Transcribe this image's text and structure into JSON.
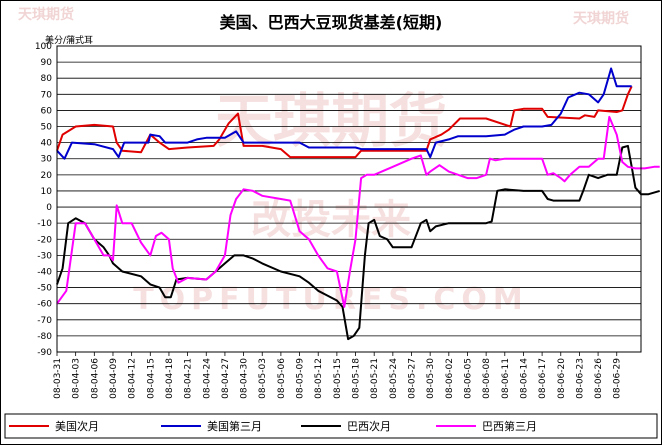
{
  "watermark": {
    "brand": "天琪期货",
    "big_text": "天琪期货",
    "sub_text": "改投未来",
    "url": "TOPFUTURES.COM",
    "color": "#e8b8b8"
  },
  "chart_data": {
    "type": "line",
    "title": "美国、巴西大豆现货基差(短期)",
    "ylabel": "美分/蒲式耳",
    "xlabel": "",
    "ylim": [
      -90,
      100
    ],
    "ytick_step": 10,
    "grid": true,
    "legend_position": "bottom",
    "x": [
      "08-03-31",
      "08-04-03",
      "08-04-06",
      "08-04-09",
      "08-04-12",
      "08-04-15",
      "08-04-18",
      "08-04-21",
      "08-04-24",
      "08-04-27",
      "08-04-30",
      "08-05-03",
      "08-05-06",
      "08-05-09",
      "08-05-12",
      "08-05-15",
      "08-05-18",
      "08-05-21",
      "08-05-24",
      "08-05-27",
      "08-05-30",
      "08-06-02",
      "08-06-05",
      "08-06-08",
      "08-06-11",
      "08-06-14",
      "08-06-17",
      "08-06-20",
      "08-06-23",
      "08-06-26",
      "08-06-29"
    ],
    "series": [
      {
        "name": "美国次月",
        "color": "#e00000",
        "points": [
          [
            0,
            35
          ],
          [
            0.3,
            45
          ],
          [
            1,
            50
          ],
          [
            2,
            51
          ],
          [
            3,
            50
          ],
          [
            3.2,
            40
          ],
          [
            3.5,
            35
          ],
          [
            4.5,
            34
          ],
          [
            5,
            45
          ],
          [
            5.5,
            40
          ],
          [
            6,
            36
          ],
          [
            7,
            37
          ],
          [
            8.4,
            38
          ],
          [
            8.7,
            42
          ],
          [
            9.2,
            52
          ],
          [
            9.7,
            58
          ],
          [
            10,
            38
          ],
          [
            11,
            38
          ],
          [
            12,
            36
          ],
          [
            12.5,
            31
          ],
          [
            15,
            31
          ],
          [
            16,
            31
          ],
          [
            16.3,
            35
          ],
          [
            18,
            35
          ],
          [
            19,
            35
          ],
          [
            19.8,
            35
          ],
          [
            20,
            42
          ],
          [
            20.6,
            45
          ],
          [
            21,
            48
          ],
          [
            21.6,
            55
          ],
          [
            23,
            55
          ],
          [
            24.3,
            50
          ],
          [
            24.5,
            60
          ],
          [
            25,
            61
          ],
          [
            26,
            61
          ],
          [
            26.3,
            56
          ],
          [
            28,
            55
          ],
          [
            28.3,
            57
          ],
          [
            28.8,
            56
          ],
          [
            29,
            60
          ],
          [
            30,
            59
          ],
          [
            30.3,
            60
          ],
          [
            30.6,
            70
          ],
          [
            30.8,
            75
          ]
        ]
      },
      {
        "name": "美国第三月",
        "color": "#0000cc",
        "points": [
          [
            0,
            35
          ],
          [
            0.4,
            30
          ],
          [
            0.8,
            40
          ],
          [
            2,
            39
          ],
          [
            3,
            36
          ],
          [
            3.3,
            31
          ],
          [
            3.6,
            40
          ],
          [
            4.9,
            40
          ],
          [
            5,
            45
          ],
          [
            5.5,
            44
          ],
          [
            5.8,
            40
          ],
          [
            7,
            40
          ],
          [
            7.5,
            42
          ],
          [
            8,
            43
          ],
          [
            9,
            43
          ],
          [
            9.6,
            47
          ],
          [
            10,
            40
          ],
          [
            11,
            40
          ],
          [
            13,
            40
          ],
          [
            13.5,
            37
          ],
          [
            15,
            37
          ],
          [
            16,
            37
          ],
          [
            16.3,
            36
          ],
          [
            18,
            36
          ],
          [
            19,
            36
          ],
          [
            19.8,
            36
          ],
          [
            20,
            31
          ],
          [
            20.3,
            40
          ],
          [
            21,
            42
          ],
          [
            21.5,
            44
          ],
          [
            23,
            44
          ],
          [
            24,
            45
          ],
          [
            24.5,
            48
          ],
          [
            25,
            50
          ],
          [
            26,
            50
          ],
          [
            26.5,
            51
          ],
          [
            27,
            58
          ],
          [
            27.4,
            68
          ],
          [
            28,
            71
          ],
          [
            28.5,
            70
          ],
          [
            29,
            65
          ],
          [
            29.3,
            70
          ],
          [
            29.7,
            86
          ],
          [
            30,
            75
          ],
          [
            30.8,
            75
          ]
        ]
      },
      {
        "name": "巴西次月",
        "color": "#000000",
        "points": [
          [
            0,
            -48
          ],
          [
            0.3,
            -38
          ],
          [
            0.6,
            -10
          ],
          [
            1,
            -7
          ],
          [
            1.5,
            -10
          ],
          [
            2,
            -20
          ],
          [
            2.5,
            -25
          ],
          [
            2.8,
            -30
          ],
          [
            3,
            -35
          ],
          [
            3.5,
            -40
          ],
          [
            4.5,
            -43
          ],
          [
            5,
            -48
          ],
          [
            5.5,
            -50
          ],
          [
            5.8,
            -56
          ],
          [
            6.1,
            -56
          ],
          [
            6.4,
            -45
          ],
          [
            7,
            -44
          ],
          [
            8,
            -45
          ],
          [
            8.5,
            -40
          ],
          [
            9,
            -35
          ],
          [
            9.5,
            -30
          ],
          [
            10,
            -30
          ],
          [
            10.5,
            -32
          ],
          [
            11,
            -35
          ],
          [
            12,
            -40
          ],
          [
            13,
            -43
          ],
          [
            13.5,
            -47
          ],
          [
            14,
            -52
          ],
          [
            14.5,
            -55
          ],
          [
            15,
            -58
          ],
          [
            15.3,
            -62
          ],
          [
            15.6,
            -82
          ],
          [
            15.9,
            -80
          ],
          [
            16.2,
            -75
          ],
          [
            16.5,
            -30
          ],
          [
            16.7,
            -10
          ],
          [
            17,
            -8
          ],
          [
            17.3,
            -18
          ],
          [
            17.7,
            -20
          ],
          [
            18,
            -25
          ],
          [
            19,
            -25
          ],
          [
            19.5,
            -10
          ],
          [
            19.8,
            -8
          ],
          [
            20,
            -15
          ],
          [
            20.3,
            -12
          ],
          [
            21,
            -10
          ],
          [
            22,
            -10
          ],
          [
            23,
            -10
          ],
          [
            23.3,
            -9
          ],
          [
            23.6,
            10
          ],
          [
            24,
            11
          ],
          [
            25,
            10
          ],
          [
            26,
            10
          ],
          [
            26.3,
            5
          ],
          [
            26.6,
            4
          ],
          [
            27,
            4
          ],
          [
            28,
            4
          ],
          [
            28.2,
            10
          ],
          [
            28.5,
            20
          ],
          [
            29,
            18
          ],
          [
            29.5,
            20
          ],
          [
            30,
            20
          ],
          [
            30.3,
            37
          ],
          [
            30.6,
            38
          ],
          [
            30.8,
            25
          ],
          [
            31,
            12
          ],
          [
            31.3,
            8
          ],
          [
            31.7,
            8
          ],
          [
            32,
            9
          ],
          [
            32.3,
            10
          ]
        ]
      },
      {
        "name": "巴西第三月",
        "color": "#ff00ff",
        "points": [
          [
            0,
            -60
          ],
          [
            0.5,
            -52
          ],
          [
            1,
            -10
          ],
          [
            1.5,
            -10
          ],
          [
            2,
            -20
          ],
          [
            2.5,
            -30
          ],
          [
            2.8,
            -30
          ],
          [
            3,
            -33
          ],
          [
            3.2,
            1
          ],
          [
            3.5,
            -10
          ],
          [
            4,
            -10
          ],
          [
            4.5,
            -22
          ],
          [
            5,
            -30
          ],
          [
            5.3,
            -18
          ],
          [
            5.6,
            -16
          ],
          [
            6,
            -20
          ],
          [
            6.2,
            -38
          ],
          [
            6.5,
            -47
          ],
          [
            7,
            -44
          ],
          [
            8,
            -45
          ],
          [
            8.5,
            -40
          ],
          [
            9,
            -30
          ],
          [
            9.3,
            -5
          ],
          [
            9.6,
            5
          ],
          [
            10,
            11
          ],
          [
            10.5,
            10
          ],
          [
            11,
            7
          ],
          [
            12,
            5
          ],
          [
            12.5,
            4
          ],
          [
            13,
            -15
          ],
          [
            13.5,
            -20
          ],
          [
            14,
            -30
          ],
          [
            14.5,
            -38
          ],
          [
            15,
            -40
          ],
          [
            15.4,
            -62
          ],
          [
            15.7,
            -40
          ],
          [
            16,
            -20
          ],
          [
            16.3,
            18
          ],
          [
            16.6,
            20
          ],
          [
            17,
            20
          ],
          [
            18,
            25
          ],
          [
            19,
            30
          ],
          [
            19.5,
            32
          ],
          [
            19.8,
            20
          ],
          [
            20,
            22
          ],
          [
            20.5,
            26
          ],
          [
            21,
            22
          ],
          [
            21.5,
            20
          ],
          [
            22,
            18
          ],
          [
            22.5,
            18
          ],
          [
            23,
            20
          ],
          [
            23.2,
            30
          ],
          [
            23.5,
            29
          ],
          [
            24,
            30
          ],
          [
            25,
            30
          ],
          [
            26,
            30
          ],
          [
            26.3,
            20
          ],
          [
            26.6,
            21
          ],
          [
            27,
            18
          ],
          [
            27.2,
            16
          ],
          [
            27.5,
            20
          ],
          [
            28,
            25
          ],
          [
            28.5,
            25
          ],
          [
            29,
            30
          ],
          [
            29.3,
            30
          ],
          [
            29.6,
            56
          ],
          [
            30,
            45
          ],
          [
            30.3,
            28
          ],
          [
            30.6,
            25
          ],
          [
            31,
            24
          ],
          [
            31.5,
            24
          ],
          [
            32,
            25
          ],
          [
            32.3,
            25
          ]
        ]
      }
    ]
  }
}
